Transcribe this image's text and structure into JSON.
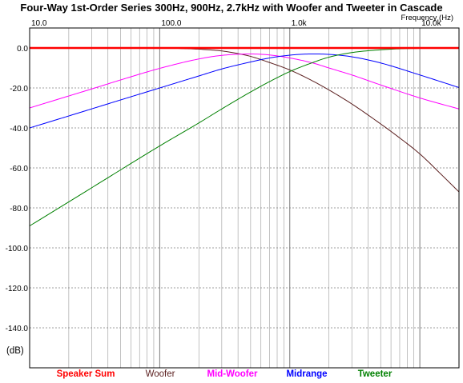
{
  "chart_data": {
    "type": "line",
    "title": "Four-Way 1st-Order Series 300Hz, 900Hz, 2.7kHz with Woofer and Tweeter in Cascade",
    "xlabel": "Frequency   (Hz)",
    "ylabel": "(dB)",
    "x_scale": "log",
    "xlim": [
      10,
      20000
    ],
    "ylim": [
      -160,
      10
    ],
    "x_ticks": [
      {
        "value": 10,
        "label": "10.0"
      },
      {
        "value": 100,
        "label": "100.0"
      },
      {
        "value": 1000,
        "label": "1.0k"
      },
      {
        "value": 10000,
        "label": "10.0k"
      }
    ],
    "y_ticks": [
      {
        "value": 0,
        "label": "0.0"
      },
      {
        "value": -20,
        "label": "-20.0"
      },
      {
        "value": -40,
        "label": "-40.0"
      },
      {
        "value": -60,
        "label": "-60.0"
      },
      {
        "value": -80,
        "label": "-80.0"
      },
      {
        "value": -100,
        "label": "-100.0"
      },
      {
        "value": -120,
        "label": "-120.0"
      },
      {
        "value": -140,
        "label": "-140.0"
      }
    ],
    "grid": true,
    "legend_position": "bottom",
    "series": [
      {
        "name": "Speaker Sum",
        "color": "#ff0000",
        "points": [
          [
            10,
            0
          ],
          [
            20000,
            0
          ]
        ]
      },
      {
        "name": "Woofer",
        "color": "#5a1e1e",
        "points": [
          [
            10,
            0
          ],
          [
            100,
            0
          ],
          [
            150,
            -0.3
          ],
          [
            200,
            -0.6
          ],
          [
            300,
            -1.5
          ],
          [
            400,
            -2.8
          ],
          [
            500,
            -4.2
          ],
          [
            700,
            -7.3
          ],
          [
            1000,
            -11
          ],
          [
            1500,
            -16.5
          ],
          [
            2000,
            -21
          ],
          [
            3000,
            -28
          ],
          [
            5000,
            -38
          ],
          [
            7000,
            -45
          ],
          [
            10000,
            -53
          ],
          [
            15000,
            -64
          ],
          [
            20000,
            -72
          ]
        ]
      },
      {
        "name": "Mid-Woofer",
        "color": "#ff00ff",
        "points": [
          [
            10,
            -30
          ],
          [
            20,
            -24
          ],
          [
            30,
            -20.5
          ],
          [
            50,
            -16
          ],
          [
            100,
            -10.2
          ],
          [
            200,
            -5.5
          ],
          [
            300,
            -3.7
          ],
          [
            500,
            -3
          ],
          [
            700,
            -3.5
          ],
          [
            1000,
            -5
          ],
          [
            1500,
            -7.5
          ],
          [
            2000,
            -10
          ],
          [
            3000,
            -13.5
          ],
          [
            5000,
            -18.5
          ],
          [
            10000,
            -25
          ],
          [
            20000,
            -30.5
          ]
        ]
      },
      {
        "name": "Midrange",
        "color": "#0000ff",
        "points": [
          [
            10,
            -40
          ],
          [
            20,
            -34
          ],
          [
            50,
            -26
          ],
          [
            100,
            -20
          ],
          [
            200,
            -14
          ],
          [
            300,
            -10.5
          ],
          [
            500,
            -7
          ],
          [
            700,
            -5
          ],
          [
            1000,
            -3.6
          ],
          [
            1500,
            -3
          ],
          [
            2000,
            -3.2
          ],
          [
            3000,
            -4.4
          ],
          [
            5000,
            -7.5
          ],
          [
            10000,
            -13.5
          ],
          [
            20000,
            -19.8
          ]
        ]
      },
      {
        "name": "Tweeter",
        "color": "#008000",
        "points": [
          [
            10,
            -89
          ],
          [
            20,
            -77
          ],
          [
            50,
            -61
          ],
          [
            100,
            -49
          ],
          [
            200,
            -37.5
          ],
          [
            300,
            -30.5
          ],
          [
            500,
            -22
          ],
          [
            700,
            -16.8
          ],
          [
            1000,
            -11.8
          ],
          [
            1500,
            -7.3
          ],
          [
            2000,
            -4.6
          ],
          [
            3000,
            -2.3
          ],
          [
            5000,
            -0.9
          ],
          [
            7000,
            -0.4
          ],
          [
            10000,
            -0.2
          ],
          [
            20000,
            0
          ]
        ]
      }
    ]
  }
}
